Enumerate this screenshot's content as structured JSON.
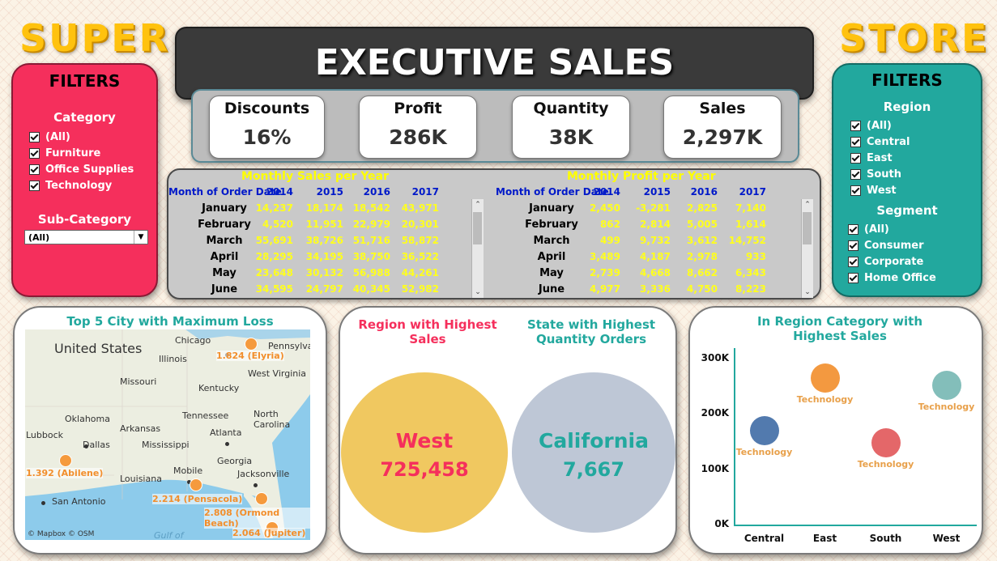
{
  "brand": {
    "left": "SUPER",
    "right": "STORE"
  },
  "title": "EXECUTIVE SALES",
  "kpis": [
    {
      "label": "Discounts",
      "value": "16%"
    },
    {
      "label": "Profit",
      "value": "286K"
    },
    {
      "label": "Quantity",
      "value": "38K"
    },
    {
      "label": "Sales",
      "value": "2,297K"
    }
  ],
  "left_filters": {
    "title": "FILTERS",
    "category_label": "Category",
    "categories": [
      "(All)",
      "Furniture",
      "Office Supplies",
      "Technology"
    ],
    "subcategory_label": "Sub-Category",
    "subcategory_selected": "(All)"
  },
  "right_filters": {
    "title": "FILTERS",
    "region_label": "Region",
    "regions": [
      "(All)",
      "Central",
      "East",
      "South",
      "West"
    ],
    "segment_label": "Segment",
    "segments": [
      "(All)",
      "Consumer",
      "Corporate",
      "Home Office"
    ]
  },
  "sales_table": {
    "title": "Monthly Sales per Year",
    "row_header": "Month of Order Date",
    "years": [
      "2014",
      "2015",
      "2016",
      "2017"
    ],
    "rows": [
      {
        "month": "January",
        "values": [
          "14,237",
          "18,174",
          "18,542",
          "43,971"
        ]
      },
      {
        "month": "February",
        "values": [
          "4,520",
          "11,951",
          "22,979",
          "20,301"
        ]
      },
      {
        "month": "March",
        "values": [
          "55,691",
          "38,726",
          "51,716",
          "58,872"
        ]
      },
      {
        "month": "April",
        "values": [
          "28,295",
          "34,195",
          "38,750",
          "36,522"
        ]
      },
      {
        "month": "May",
        "values": [
          "23,648",
          "30,132",
          "56,988",
          "44,261"
        ]
      },
      {
        "month": "June",
        "values": [
          "34,595",
          "24,797",
          "40,345",
          "52,982"
        ]
      }
    ]
  },
  "profit_table": {
    "title": "Monthly Profit per Year",
    "row_header": "Month of Order Date",
    "years": [
      "2014",
      "2015",
      "2016",
      "2017"
    ],
    "rows": [
      {
        "month": "January",
        "values": [
          "2,450",
          "-3,281",
          "2,825",
          "7,140"
        ]
      },
      {
        "month": "February",
        "values": [
          "862",
          "2,814",
          "5,005",
          "1,614"
        ]
      },
      {
        "month": "March",
        "values": [
          "499",
          "9,732",
          "3,612",
          "14,752"
        ]
      },
      {
        "month": "April",
        "values": [
          "3,489",
          "4,187",
          "2,978",
          "933"
        ]
      },
      {
        "month": "May",
        "values": [
          "2,739",
          "4,668",
          "8,662",
          "6,343"
        ]
      },
      {
        "month": "June",
        "values": [
          "4,977",
          "3,336",
          "4,750",
          "8,223"
        ]
      }
    ]
  },
  "map_panel": {
    "title": "Top 5 City with Maximum Loss",
    "attribution": "© Mapbox © OSM",
    "place_labels": [
      "United States",
      "Chicago",
      "Illinois",
      "Pennsylva",
      "West Virginia",
      "Missouri",
      "Kentucky",
      "Oklahoma",
      "Arkansas",
      "Tennessee",
      "North Carolina",
      "Lubbock",
      "Dallas",
      "Mississippi",
      "Atlanta",
      "Georgia",
      "Louisiana",
      "Mobile",
      "Jacksonville",
      "San Antonio",
      "Gulf of"
    ],
    "losses": [
      {
        "value": "1.824",
        "city": "Elyria"
      },
      {
        "value": "1.392",
        "city": "Abilene"
      },
      {
        "value": "2.214",
        "city": "Pensacola"
      },
      {
        "value": "2.808",
        "city": "Ormond Beach"
      },
      {
        "value": "2.064",
        "city": "Jupiter"
      }
    ]
  },
  "highlights": {
    "region_title": "Region with Highest Sales",
    "region_name": "West",
    "region_value": "725,458",
    "region_color": "#f0c860",
    "state_title": "State with Highest Quantity Orders",
    "state_name": "California",
    "state_value": "7,667",
    "state_color": "#bec7d6"
  },
  "bubble_panel": {
    "title": "In Region Category with Highest Sales"
  },
  "chart_data": {
    "type": "scatter",
    "title": "In Region Category with Highest Sales",
    "categories": [
      "Central",
      "East",
      "South",
      "West"
    ],
    "y_ticks": [
      "300K",
      "200K",
      "100K",
      "0K"
    ],
    "ylim": [
      0,
      310000
    ],
    "points": [
      {
        "region": "Central",
        "category": "Technology",
        "value": 170000,
        "color": "#3f6ba5"
      },
      {
        "region": "East",
        "category": "Technology",
        "value": 265000,
        "color": "#f28e2b"
      },
      {
        "region": "South",
        "category": "Technology",
        "value": 148000,
        "color": "#e15759"
      },
      {
        "region": "West",
        "category": "Technology",
        "value": 251000,
        "color": "#76b7b2"
      }
    ]
  }
}
